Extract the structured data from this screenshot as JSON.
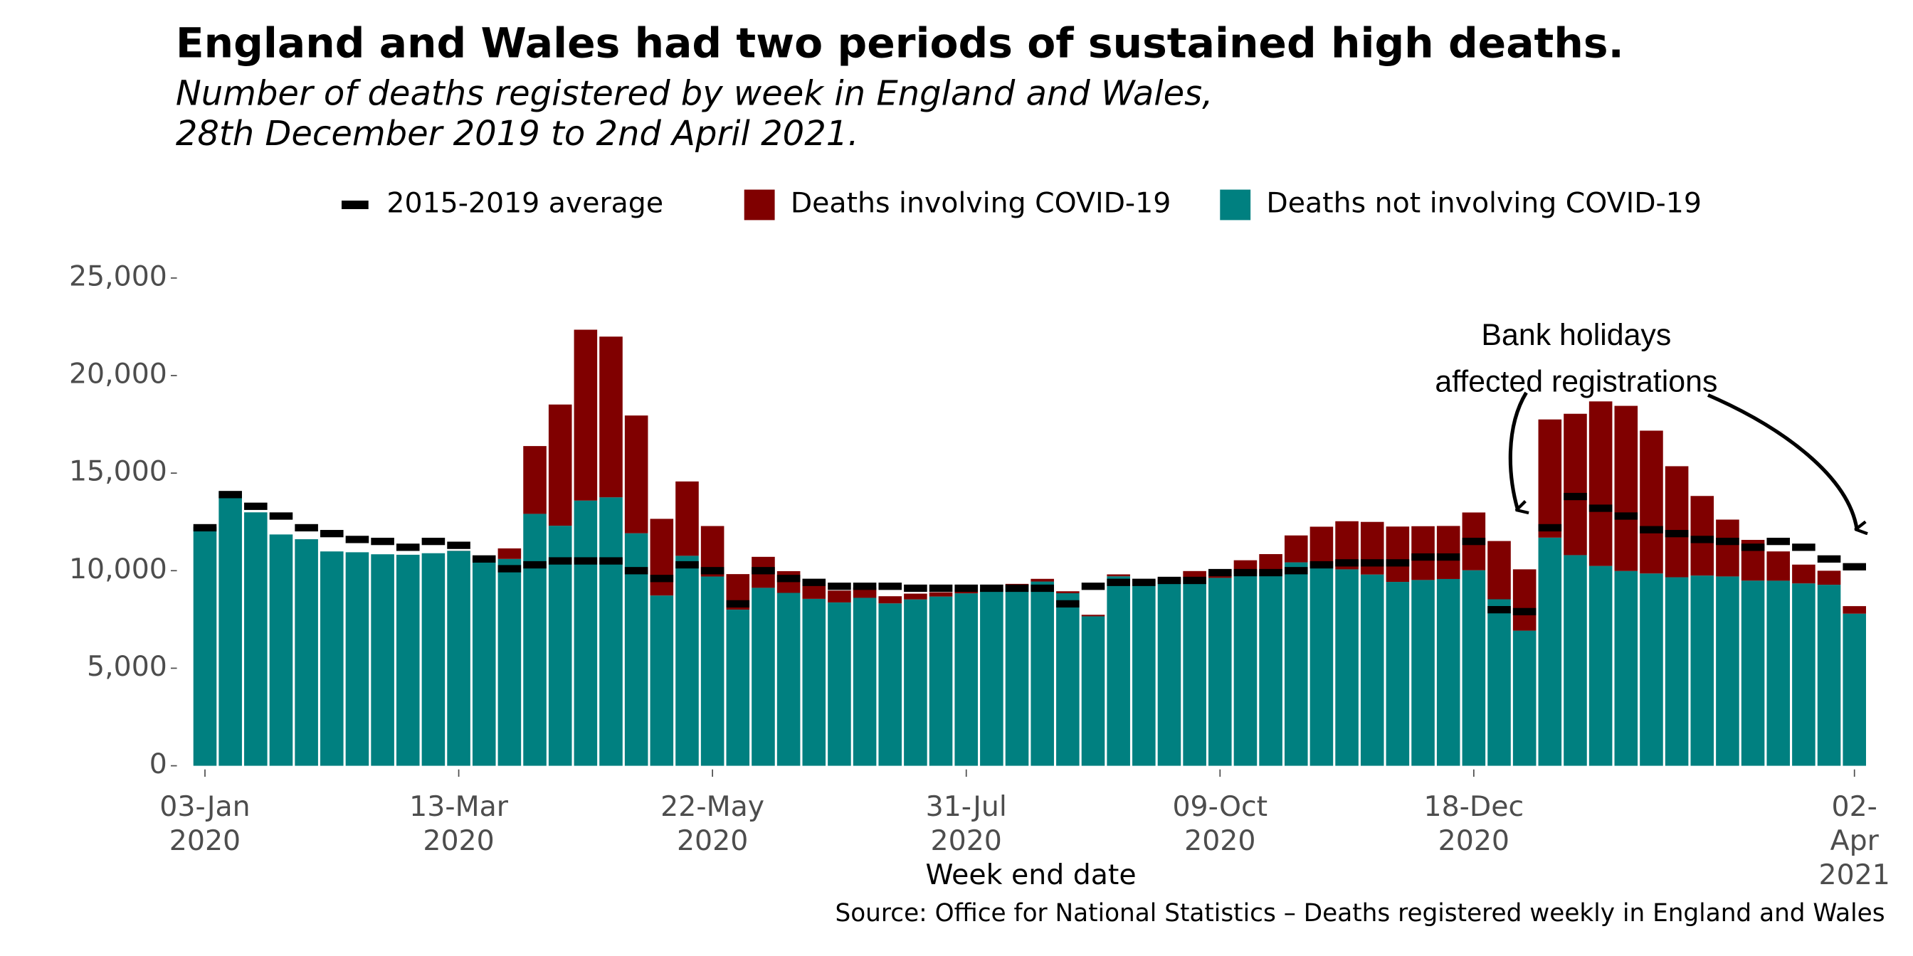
{
  "chart_data": {
    "type": "stacked_bar",
    "title": "England and Wales had two periods of sustained high deaths.",
    "subtitle": "Number of deaths registered by week in England and Wales,\n28th December 2019 to 2nd April 2021.",
    "x_label": "Week end date",
    "source": "Source: Office for National Statistics – Deaths registered weekly in England and Wales",
    "annotation": "Bank holidays\naffected registrations",
    "categories": [
      "03-Jan\n2020",
      null,
      null,
      null,
      null,
      null,
      null,
      null,
      null,
      null,
      "13-Mar\n2020",
      null,
      null,
      null,
      null,
      null,
      null,
      null,
      null,
      null,
      "22-May\n2020",
      null,
      null,
      null,
      null,
      null,
      null,
      null,
      null,
      null,
      "31-Jul\n2020",
      null,
      null,
      null,
      null,
      null,
      null,
      null,
      null,
      null,
      "09-Oct\n2020",
      null,
      null,
      null,
      null,
      null,
      null,
      null,
      null,
      null,
      "18-Dec\n2020",
      null,
      null,
      null,
      null,
      null,
      null,
      null,
      null,
      null,
      null,
      null,
      null,
      null,
      null,
      "02-Apr\n2021"
    ],
    "series": [
      {
        "name": "2015-2019 average",
        "color": "#000000",
        "marker": "dash",
        "values": [
          12200,
          13900,
          13300,
          12800,
          12200,
          11900,
          11600,
          11500,
          11200,
          11500,
          11300,
          10600,
          10100,
          10300,
          10500,
          10500,
          10500,
          10000,
          9600,
          10300,
          10000,
          8300,
          10000,
          9600,
          9400,
          9200,
          9200,
          9200,
          9100,
          9100,
          9100,
          9100,
          9100,
          9100,
          8300,
          9200,
          9400,
          9400,
          9500,
          9500,
          9900,
          9900,
          9900,
          10000,
          10300,
          10400,
          10400,
          10400,
          10700,
          10700,
          11500,
          8000,
          7900,
          12200,
          13800,
          13200,
          12800,
          12100,
          11900,
          11600,
          11500,
          11200,
          11500,
          11200,
          10600,
          10200
        ]
      },
      {
        "name": "Deaths involving COVID-19",
        "color": "#800000",
        "stack": "top",
        "values": [
          0,
          0,
          0,
          0,
          0,
          0,
          0,
          0,
          0,
          0,
          5,
          103,
          539,
          3475,
          6213,
          8758,
          8237,
          6035,
          3930,
          3810,
          2589,
          1822,
          1588,
          1114,
          783,
          606,
          532,
          366,
          295,
          217,
          193,
          152,
          139,
          138,
          101,
          78,
          99,
          139,
          215,
          321,
          438,
          670,
          978,
          1379,
          1937,
          2466,
          2697,
          2837,
          2756,
          2718,
          2961,
          2986,
          3144,
          6057,
          7245,
          8433,
          8464,
          7320,
          5691,
          4079,
          2914,
          2088,
          1501,
          963,
          719,
          386
        ]
      },
      {
        "name": "Deaths not involving COVID-19",
        "color": "#008080",
        "stack": "bottom",
        "values": [
          12254,
          14058,
          12990,
          11856,
          11612,
          10986,
          10944,
          10841,
          10816,
          10895,
          11014,
          10542,
          10602,
          12912,
          12303,
          13593,
          13760,
          11918,
          8727,
          10763,
          9699,
          8002,
          9121,
          8862,
          8556,
          8373,
          8608,
          8324,
          8528,
          8674,
          8839,
          8920,
          9184,
          9443,
          8844,
          7661,
          9712,
          9384,
          9419,
          9659,
          9631,
          9864,
          9872,
          10427,
          10317,
          10068,
          9803,
          9425,
          9523,
          9574,
          10022,
          8534,
          6925,
          11694,
          10797,
          10243,
          9984,
          9857,
          9663,
          9750,
          9704,
          9490,
          9486,
          9348,
          9278,
          7797
        ]
      }
    ],
    "ylim": [
      0,
      25000
    ],
    "yticks": [
      0,
      {
        "value": 5000,
        "label": "5,000"
      },
      {
        "value": 10000,
        "label": "10,000"
      },
      {
        "value": 15000,
        "label": "15,000"
      },
      {
        "value": 20000,
        "label": "20,000"
      },
      {
        "value": 25000,
        "label": "25,000"
      }
    ],
    "grid": false,
    "legend": "top"
  }
}
